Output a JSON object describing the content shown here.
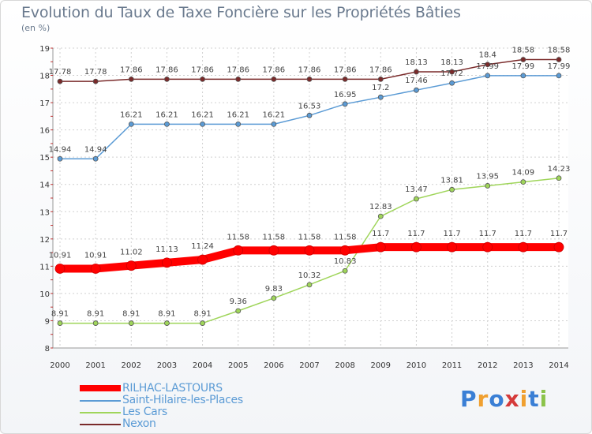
{
  "chart_data": {
    "type": "line",
    "title": "Evolution du Taux de Taxe Foncière sur les Propriétés Bâties",
    "subtitle": "(en %)",
    "xlabel": "",
    "ylabel": "",
    "x": [
      "2000",
      "2001",
      "2002",
      "2003",
      "2004",
      "2005",
      "2006",
      "2007",
      "2008",
      "2009",
      "2010",
      "2011",
      "2012",
      "2013",
      "2014"
    ],
    "yticks": [
      "8",
      "9",
      "10",
      "11",
      "12",
      "13",
      "14",
      "15",
      "16",
      "17",
      "18",
      "19"
    ],
    "ylim": [
      8,
      19
    ],
    "grid": true,
    "legend_position": "bottom-left",
    "series": [
      {
        "name": "RILHAC-LASTOURS",
        "color": "#ff0000",
        "values": [
          10.91,
          10.91,
          11.02,
          11.13,
          11.24,
          11.58,
          11.58,
          11.58,
          11.58,
          11.7,
          11.7,
          11.7,
          11.7,
          11.7,
          11.7
        ],
        "labels": [
          "10.91",
          "10.91",
          "11.02",
          "11.13",
          "11.24",
          "11.58",
          "11.58",
          "11.58",
          "11.58",
          "11.7",
          "11.7",
          "11.7",
          "11.7",
          "11.7",
          "11.7"
        ]
      },
      {
        "name": "Saint-Hilaire-les-Places",
        "color": "#5b9bd5",
        "values": [
          14.94,
          14.94,
          16.21,
          16.21,
          16.21,
          16.21,
          16.21,
          16.53,
          16.95,
          17.2,
          17.46,
          17.72,
          17.99,
          17.99,
          17.99
        ],
        "labels": [
          "14.94",
          "14.94",
          "16.21",
          "16.21",
          "16.21",
          "16.21",
          "16.21",
          "16.53",
          "16.95",
          "17.2",
          "17.46",
          "17.72",
          "17.99",
          "17.99",
          "17.99"
        ]
      },
      {
        "name": "Les Cars",
        "color": "#9fd55a",
        "values": [
          8.91,
          8.91,
          8.91,
          8.91,
          8.91,
          9.36,
          9.83,
          10.32,
          10.83,
          12.83,
          13.47,
          13.81,
          13.95,
          14.09,
          14.23
        ],
        "labels": [
          "8.91",
          "8.91",
          "8.91",
          "8.91",
          "8.91",
          "9.36",
          "9.83",
          "10.32",
          "10.83",
          "12.83",
          "13.47",
          "13.81",
          "13.95",
          "14.09",
          "14.23"
        ]
      },
      {
        "name": "Nexon",
        "color": "#7a2a2a",
        "values": [
          17.78,
          17.78,
          17.86,
          17.86,
          17.86,
          17.86,
          17.86,
          17.86,
          17.86,
          17.86,
          18.13,
          18.13,
          18.4,
          18.58,
          18.58
        ],
        "labels": [
          "17.78",
          "17.78",
          "17.86",
          "17.86",
          "17.86",
          "17.86",
          "17.86",
          "17.86",
          "17.86",
          "17.86",
          "18.13",
          "18.13",
          "18.4",
          "18.58",
          "18.58"
        ]
      }
    ]
  },
  "brand": {
    "letters": [
      "P",
      "r",
      "o",
      "x",
      "i",
      "t",
      "i"
    ],
    "colors": [
      "#3a7fd5",
      "#f0a030",
      "#3a7fd5",
      "#d53a3a",
      "#f0a030",
      "#3a7fd5",
      "#8bc34a"
    ]
  }
}
